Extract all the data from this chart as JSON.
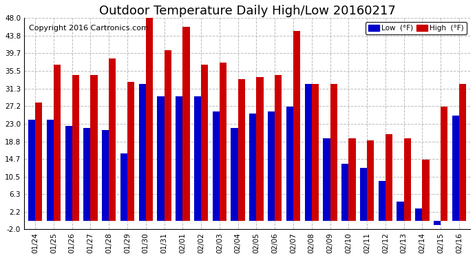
{
  "title": "Outdoor Temperature Daily High/Low 20160217",
  "copyright": "Copyright 2016 Cartronics.com",
  "legend_low": "Low  (°F)",
  "legend_high": "High  (°F)",
  "categories": [
    "01/24",
    "01/25",
    "01/26",
    "01/27",
    "01/28",
    "01/29",
    "01/30",
    "01/31",
    "02/01",
    "02/02",
    "02/03",
    "02/04",
    "02/05",
    "02/06",
    "02/07",
    "02/08",
    "02/09",
    "02/10",
    "02/11",
    "02/12",
    "02/13",
    "02/14",
    "02/15",
    "02/16"
  ],
  "high_values": [
    28.0,
    37.0,
    34.5,
    34.5,
    38.5,
    33.0,
    48.5,
    40.5,
    46.0,
    37.0,
    37.5,
    33.5,
    34.0,
    34.5,
    45.0,
    32.5,
    32.5,
    19.5,
    19.0,
    20.5,
    19.5,
    14.5,
    27.0,
    32.5
  ],
  "low_values": [
    24.0,
    24.0,
    22.5,
    22.0,
    21.5,
    16.0,
    32.5,
    29.5,
    29.5,
    29.5,
    26.0,
    22.0,
    25.5,
    26.0,
    27.0,
    32.5,
    19.5,
    13.5,
    12.5,
    9.5,
    4.5,
    3.0,
    -1.0,
    25.0
  ],
  "ylim": [
    -2.0,
    48.0
  ],
  "yticks": [
    -2.0,
    2.2,
    6.3,
    10.5,
    14.7,
    18.8,
    23.0,
    27.2,
    31.3,
    35.5,
    39.7,
    43.8,
    48.0
  ],
  "bar_color_low": "#0000cc",
  "bar_color_high": "#cc0000",
  "background_color": "#ffffff",
  "grid_color": "#aaaaaa",
  "title_fontsize": 13,
  "copyright_fontsize": 8
}
